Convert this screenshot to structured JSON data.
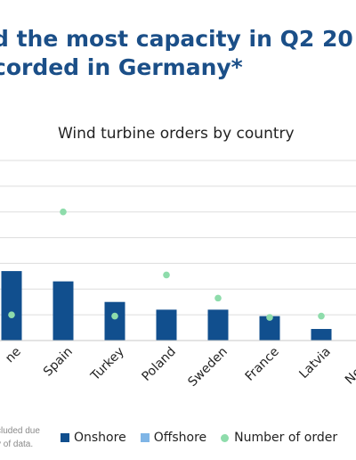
{
  "headline": {
    "line1": "d the most capacity in Q2 20",
    "line2": "corded in Germany*"
  },
  "footnote": {
    "line1": "cluded due",
    "line2": "y of data."
  },
  "legend": {
    "onshore": "Onshore",
    "offshore": "Offshore",
    "orders": "Number of order"
  },
  "colors": {
    "onshore": "#114f8e",
    "offshore": "#7fb5e6",
    "orders": "#8edcab",
    "grid": "#dddddd"
  },
  "chart_data": {
    "type": "bar",
    "title": "Wind turbine orders by country",
    "categories": [
      "ne",
      "Spain",
      "Turkey",
      "Poland",
      "Sweden",
      "France",
      "Latvia",
      "Netherl"
    ],
    "series": [
      {
        "name": "Onshore",
        "values": [
          54,
          46,
          30,
          24,
          24,
          19,
          9,
          0
        ]
      },
      {
        "name": "Number of orders",
        "values": [
          20,
          100,
          19,
          51,
          33,
          18,
          19,
          null
        ]
      }
    ],
    "ylim": [
      0,
      140
    ],
    "grid": true,
    "legend_position": "bottom"
  }
}
